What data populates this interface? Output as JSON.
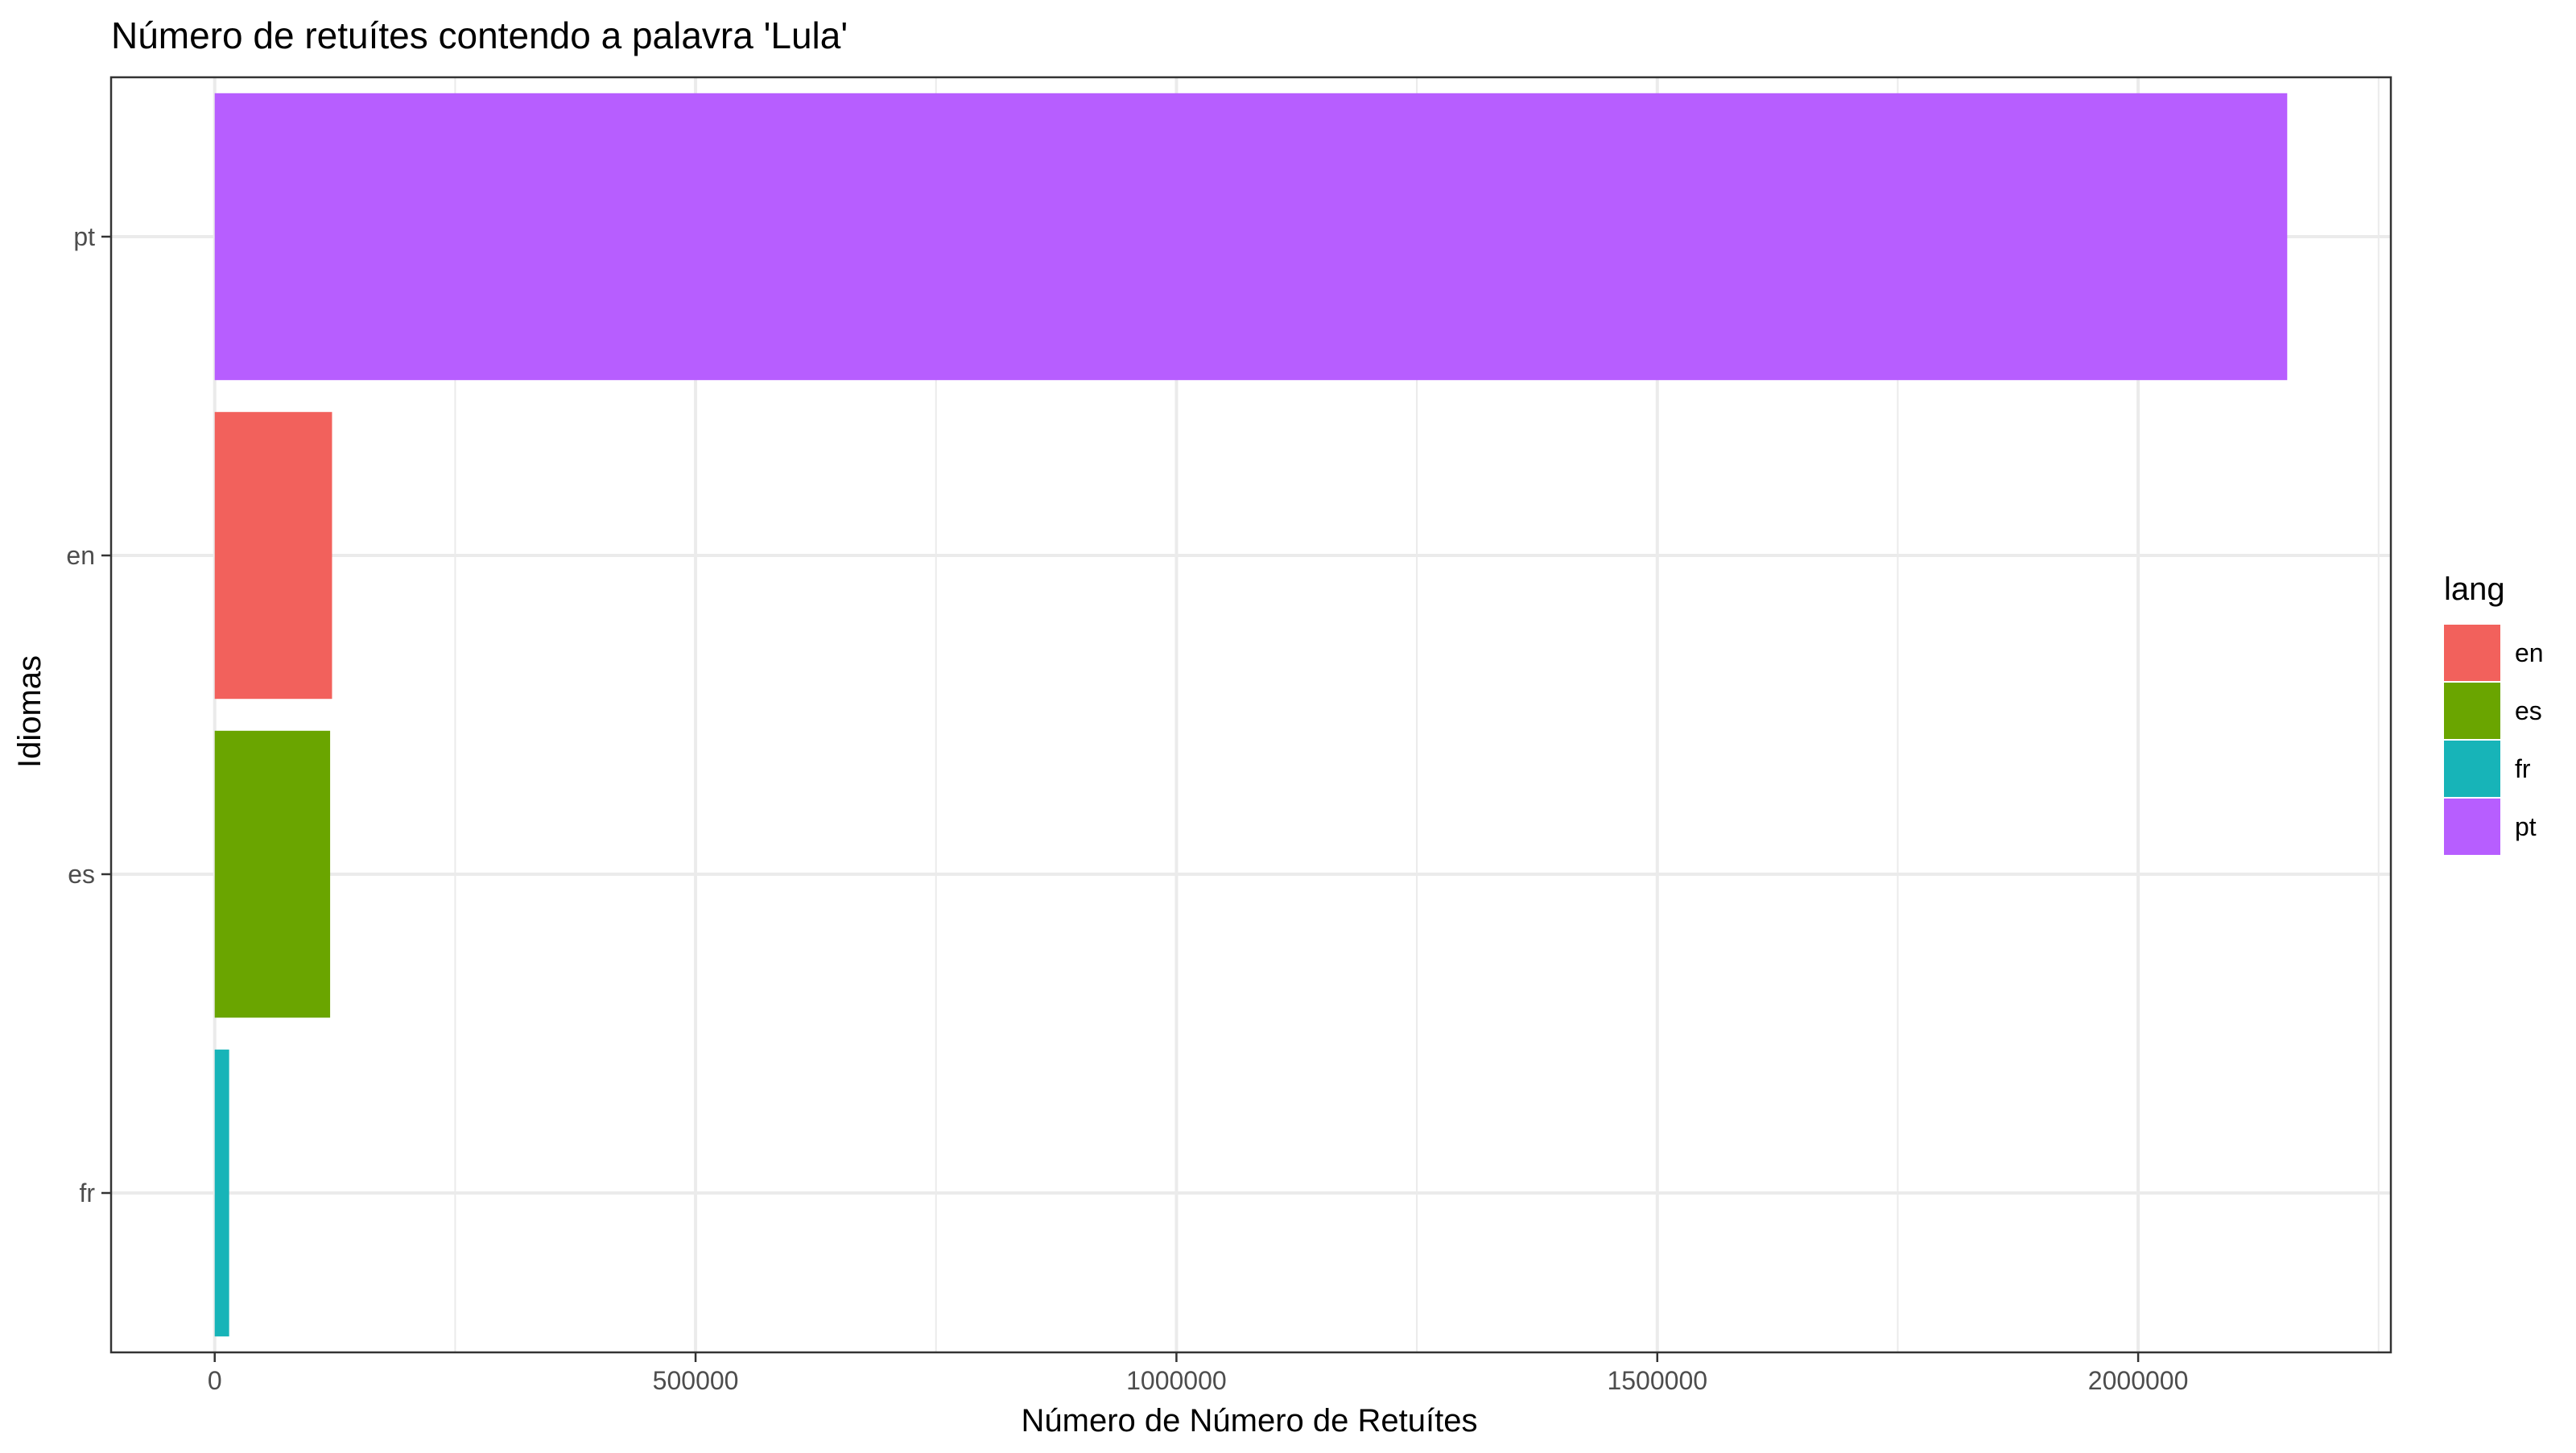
{
  "chart_data": {
    "type": "bar",
    "orientation": "horizontal",
    "title": "Número de retuítes contendo a palavra 'Lula'",
    "xlabel": "Número de Número de Retuítes",
    "ylabel": "Idiomas",
    "categories": [
      "pt",
      "en",
      "es",
      "fr"
    ],
    "values": [
      2155000,
      122000,
      120000,
      15000
    ],
    "bar_colors": [
      "#B75EFF",
      "#F2615C",
      "#6AA500",
      "#17B4B8"
    ],
    "xlim": [
      -107750,
      2262750
    ],
    "x_ticks": [
      0,
      500000,
      1000000,
      1500000,
      2000000
    ],
    "x_tick_labels": [
      "0",
      "500000",
      "1000000",
      "1500000",
      "2000000"
    ],
    "grid": true,
    "legend": {
      "title": "lang",
      "position": "right",
      "entries": [
        {
          "label": "en",
          "color": "#F2615C"
        },
        {
          "label": "es",
          "color": "#6AA500"
        },
        {
          "label": "fr",
          "color": "#17B4B8"
        },
        {
          "label": "pt",
          "color": "#B75EFF"
        }
      ]
    }
  }
}
